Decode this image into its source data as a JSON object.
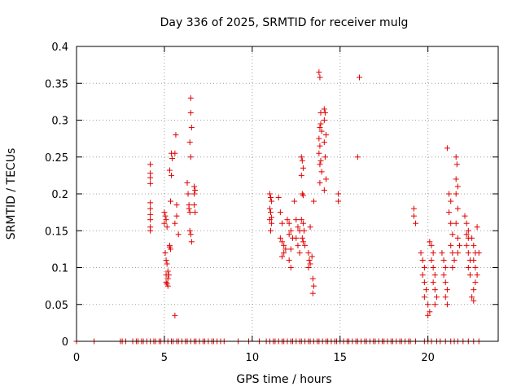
{
  "chart_data": {
    "type": "scatter",
    "title": "Day 336 of 2025, SRMTID for receiver mulg",
    "xlabel": "GPS time / hours",
    "ylabel": "SRMTID / TECUs",
    "xlim": [
      0,
      24
    ],
    "ylim": [
      0,
      0.4
    ],
    "x_ticks": [
      0,
      5,
      10,
      15,
      20
    ],
    "x_tick_labels": [
      "0",
      "5",
      "10",
      "15",
      "20"
    ],
    "y_ticks": [
      0,
      0.05,
      0.1,
      0.15,
      0.2,
      0.25,
      0.3,
      0.35,
      0.4
    ],
    "y_tick_labels": [
      "0",
      "0.05",
      "0.1",
      "0.15",
      "0.2",
      "0.25",
      "0.3",
      "0.35",
      "0.4"
    ],
    "grid": true,
    "marker": "+",
    "color": "#e00000",
    "series": [
      {
        "name": "SRMTID",
        "points": [
          [
            4.2,
            0.24
          ],
          [
            4.2,
            0.228
          ],
          [
            4.2,
            0.222
          ],
          [
            4.2,
            0.214
          ],
          [
            4.2,
            0.188
          ],
          [
            4.2,
            0.18
          ],
          [
            4.2,
            0.172
          ],
          [
            4.2,
            0.165
          ],
          [
            4.2,
            0.155
          ],
          [
            4.2,
            0.15
          ],
          [
            5.0,
            0.175
          ],
          [
            5.05,
            0.17
          ],
          [
            5.1,
            0.165
          ],
          [
            5.0,
            0.16
          ],
          [
            5.15,
            0.155
          ],
          [
            5.05,
            0.12
          ],
          [
            5.1,
            0.11
          ],
          [
            5.15,
            0.105
          ],
          [
            5.2,
            0.095
          ],
          [
            5.1,
            0.09
          ],
          [
            5.2,
            0.085
          ],
          [
            5.1,
            0.08
          ],
          [
            5.15,
            0.078
          ],
          [
            5.25,
            0.09
          ],
          [
            5.2,
            0.075
          ],
          [
            5.3,
            0.13
          ],
          [
            5.35,
            0.125
          ],
          [
            5.3,
            0.128
          ],
          [
            5.35,
            0.19
          ],
          [
            5.4,
            0.255
          ],
          [
            5.45,
            0.248
          ],
          [
            5.3,
            0.232
          ],
          [
            5.4,
            0.225
          ],
          [
            5.6,
            0.255
          ],
          [
            5.6,
            0.16
          ],
          [
            5.65,
            0.28
          ],
          [
            5.7,
            0.185
          ],
          [
            5.7,
            0.17
          ],
          [
            5.8,
            0.145
          ],
          [
            5.6,
            0.035
          ],
          [
            6.3,
            0.215
          ],
          [
            6.35,
            0.2
          ],
          [
            6.4,
            0.18
          ],
          [
            6.45,
            0.175
          ],
          [
            6.5,
            0.33
          ],
          [
            6.5,
            0.31
          ],
          [
            6.55,
            0.29
          ],
          [
            6.45,
            0.27
          ],
          [
            6.5,
            0.25
          ],
          [
            6.45,
            0.15
          ],
          [
            6.5,
            0.145
          ],
          [
            6.55,
            0.135
          ],
          [
            6.4,
            0.185
          ],
          [
            6.7,
            0.21
          ],
          [
            6.7,
            0.2
          ],
          [
            6.75,
            0.205
          ],
          [
            6.7,
            0.185
          ],
          [
            6.75,
            0.175
          ],
          [
            11.0,
            0.2
          ],
          [
            11.05,
            0.195
          ],
          [
            11.1,
            0.19
          ],
          [
            11.0,
            0.18
          ],
          [
            11.05,
            0.175
          ],
          [
            11.1,
            0.168
          ],
          [
            11.0,
            0.165
          ],
          [
            11.1,
            0.16
          ],
          [
            11.05,
            0.15
          ],
          [
            11.5,
            0.195
          ],
          [
            11.6,
            0.175
          ],
          [
            11.7,
            0.16
          ],
          [
            11.6,
            0.14
          ],
          [
            11.7,
            0.135
          ],
          [
            11.8,
            0.13
          ],
          [
            11.9,
            0.125
          ],
          [
            11.8,
            0.12
          ],
          [
            11.7,
            0.115
          ],
          [
            12.0,
            0.165
          ],
          [
            12.1,
            0.16
          ],
          [
            12.2,
            0.15
          ],
          [
            12.1,
            0.145
          ],
          [
            12.3,
            0.14
          ],
          [
            12.2,
            0.125
          ],
          [
            12.1,
            0.11
          ],
          [
            12.2,
            0.1
          ],
          [
            12.4,
            0.19
          ],
          [
            12.5,
            0.165
          ],
          [
            12.6,
            0.155
          ],
          [
            12.7,
            0.15
          ],
          [
            12.5,
            0.14
          ],
          [
            12.6,
            0.13
          ],
          [
            12.7,
            0.12
          ],
          [
            12.8,
            0.25
          ],
          [
            12.85,
            0.245
          ],
          [
            12.9,
            0.235
          ],
          [
            12.8,
            0.225
          ],
          [
            12.85,
            0.2
          ],
          [
            12.9,
            0.198
          ],
          [
            12.8,
            0.165
          ],
          [
            12.9,
            0.16
          ],
          [
            12.95,
            0.15
          ],
          [
            12.85,
            0.14
          ],
          [
            12.9,
            0.135
          ],
          [
            13.0,
            0.13
          ],
          [
            13.2,
            0.12
          ],
          [
            13.25,
            0.11
          ],
          [
            13.2,
            0.1
          ],
          [
            13.3,
            0.105
          ],
          [
            13.4,
            0.115
          ],
          [
            13.45,
            0.085
          ],
          [
            13.5,
            0.075
          ],
          [
            13.45,
            0.065
          ],
          [
            13.3,
            0.155
          ],
          [
            13.5,
            0.19
          ],
          [
            13.8,
            0.365
          ],
          [
            13.85,
            0.358
          ],
          [
            13.9,
            0.31
          ],
          [
            13.85,
            0.29
          ],
          [
            13.9,
            0.295
          ],
          [
            13.95,
            0.285
          ],
          [
            13.8,
            0.275
          ],
          [
            13.85,
            0.265
          ],
          [
            13.8,
            0.255
          ],
          [
            13.9,
            0.245
          ],
          [
            13.85,
            0.24
          ],
          [
            13.95,
            0.23
          ],
          [
            13.85,
            0.215
          ],
          [
            14.1,
            0.315
          ],
          [
            14.15,
            0.31
          ],
          [
            14.1,
            0.3
          ],
          [
            14.2,
            0.28
          ],
          [
            14.1,
            0.27
          ],
          [
            14.15,
            0.25
          ],
          [
            14.2,
            0.22
          ],
          [
            14.1,
            0.205
          ],
          [
            14.9,
            0.2
          ],
          [
            14.9,
            0.19
          ],
          [
            16.1,
            0.358
          ],
          [
            16.0,
            0.25
          ],
          [
            19.2,
            0.18
          ],
          [
            19.2,
            0.17
          ],
          [
            19.3,
            0.16
          ],
          [
            19.6,
            0.12
          ],
          [
            19.7,
            0.11
          ],
          [
            19.8,
            0.1
          ],
          [
            19.7,
            0.09
          ],
          [
            19.8,
            0.08
          ],
          [
            19.9,
            0.07
          ],
          [
            19.8,
            0.06
          ],
          [
            20.0,
            0.05
          ],
          [
            20.1,
            0.04
          ],
          [
            20.0,
            0.035
          ],
          [
            20.1,
            0.135
          ],
          [
            20.2,
            0.13
          ],
          [
            20.3,
            0.12
          ],
          [
            20.2,
            0.11
          ],
          [
            20.3,
            0.1
          ],
          [
            20.4,
            0.09
          ],
          [
            20.3,
            0.08
          ],
          [
            20.4,
            0.07
          ],
          [
            20.5,
            0.06
          ],
          [
            20.4,
            0.05
          ],
          [
            20.8,
            0.12
          ],
          [
            20.9,
            0.11
          ],
          [
            21.0,
            0.1
          ],
          [
            20.9,
            0.09
          ],
          [
            21.0,
            0.08
          ],
          [
            21.1,
            0.07
          ],
          [
            21.0,
            0.06
          ],
          [
            21.1,
            0.05
          ],
          [
            21.1,
            0.262
          ],
          [
            21.2,
            0.2
          ],
          [
            21.3,
            0.19
          ],
          [
            21.2,
            0.175
          ],
          [
            21.3,
            0.16
          ],
          [
            21.4,
            0.145
          ],
          [
            21.3,
            0.13
          ],
          [
            21.4,
            0.12
          ],
          [
            21.5,
            0.11
          ],
          [
            21.4,
            0.1
          ],
          [
            21.6,
            0.25
          ],
          [
            21.65,
            0.24
          ],
          [
            21.6,
            0.22
          ],
          [
            21.7,
            0.21
          ],
          [
            21.6,
            0.2
          ],
          [
            21.7,
            0.18
          ],
          [
            21.6,
            0.16
          ],
          [
            21.7,
            0.14
          ],
          [
            21.8,
            0.13
          ],
          [
            21.7,
            0.12
          ],
          [
            22.1,
            0.17
          ],
          [
            22.2,
            0.16
          ],
          [
            22.3,
            0.15
          ],
          [
            22.2,
            0.145
          ],
          [
            22.3,
            0.14
          ],
          [
            22.2,
            0.13
          ],
          [
            22.3,
            0.12
          ],
          [
            22.4,
            0.11
          ],
          [
            22.3,
            0.1
          ],
          [
            22.4,
            0.09
          ],
          [
            22.5,
            0.14
          ],
          [
            22.6,
            0.13
          ],
          [
            22.7,
            0.12
          ],
          [
            22.6,
            0.11
          ],
          [
            22.7,
            0.1
          ],
          [
            22.8,
            0.09
          ],
          [
            22.7,
            0.08
          ],
          [
            22.6,
            0.07
          ],
          [
            22.5,
            0.06
          ],
          [
            22.6,
            0.055
          ],
          [
            22.8,
            0.155
          ],
          [
            22.9,
            0.12
          ],
          [
            0.0,
            0
          ],
          [
            1.0,
            0
          ],
          [
            2.5,
            0
          ],
          [
            2.6,
            0
          ],
          [
            2.8,
            0
          ],
          [
            3.2,
            0
          ],
          [
            3.4,
            0
          ],
          [
            3.5,
            0
          ],
          [
            3.7,
            0
          ],
          [
            3.8,
            0
          ],
          [
            4.0,
            0
          ],
          [
            4.2,
            0
          ],
          [
            4.4,
            0
          ],
          [
            4.5,
            0
          ],
          [
            4.7,
            0
          ],
          [
            4.8,
            0
          ],
          [
            5.0,
            0
          ],
          [
            5.2,
            0
          ],
          [
            5.4,
            0
          ],
          [
            5.5,
            0
          ],
          [
            5.7,
            0
          ],
          [
            5.8,
            0
          ],
          [
            6.0,
            0
          ],
          [
            6.2,
            0
          ],
          [
            6.3,
            0
          ],
          [
            6.5,
            0
          ],
          [
            6.7,
            0
          ],
          [
            6.8,
            0
          ],
          [
            7.0,
            0
          ],
          [
            7.2,
            0
          ],
          [
            7.3,
            0
          ],
          [
            7.5,
            0
          ],
          [
            7.7,
            0
          ],
          [
            7.8,
            0
          ],
          [
            8.0,
            0
          ],
          [
            8.2,
            0
          ],
          [
            8.4,
            0
          ],
          [
            9.2,
            0
          ],
          [
            9.8,
            0
          ],
          [
            10.4,
            0
          ],
          [
            10.8,
            0
          ],
          [
            11.0,
            0
          ],
          [
            11.2,
            0
          ],
          [
            11.3,
            0
          ],
          [
            11.5,
            0
          ],
          [
            11.7,
            0
          ],
          [
            11.8,
            0
          ],
          [
            12.0,
            0
          ],
          [
            12.2,
            0
          ],
          [
            12.3,
            0
          ],
          [
            12.5,
            0
          ],
          [
            12.7,
            0
          ],
          [
            12.8,
            0
          ],
          [
            13.0,
            0
          ],
          [
            13.2,
            0
          ],
          [
            13.3,
            0
          ],
          [
            13.5,
            0
          ],
          [
            13.7,
            0
          ],
          [
            13.8,
            0
          ],
          [
            14.0,
            0
          ],
          [
            14.2,
            0
          ],
          [
            14.3,
            0
          ],
          [
            14.5,
            0
          ],
          [
            14.7,
            0
          ],
          [
            14.8,
            0
          ],
          [
            15.0,
            0
          ],
          [
            15.2,
            0
          ],
          [
            15.4,
            0
          ],
          [
            15.5,
            0
          ],
          [
            15.7,
            0
          ],
          [
            15.9,
            0
          ],
          [
            16.0,
            0
          ],
          [
            16.2,
            0
          ],
          [
            16.4,
            0
          ],
          [
            16.5,
            0
          ],
          [
            16.7,
            0
          ],
          [
            16.9,
            0
          ],
          [
            17.0,
            0
          ],
          [
            17.2,
            0
          ],
          [
            17.4,
            0
          ],
          [
            17.5,
            0
          ],
          [
            17.7,
            0
          ],
          [
            17.9,
            0
          ],
          [
            18.0,
            0
          ],
          [
            18.2,
            0
          ],
          [
            18.4,
            0
          ],
          [
            18.5,
            0
          ],
          [
            18.7,
            0
          ],
          [
            18.9,
            0
          ],
          [
            19.0,
            0
          ],
          [
            19.3,
            0
          ],
          [
            19.8,
            0
          ],
          [
            20.0,
            0
          ],
          [
            20.2,
            0
          ],
          [
            20.5,
            0
          ],
          [
            20.7,
            0
          ],
          [
            21.0,
            0
          ],
          [
            21.3,
            0
          ],
          [
            21.5,
            0
          ],
          [
            21.7,
            0
          ],
          [
            22.0,
            0
          ],
          [
            22.3,
            0
          ],
          [
            22.6,
            0
          ],
          [
            22.9,
            0
          ]
        ]
      }
    ]
  }
}
